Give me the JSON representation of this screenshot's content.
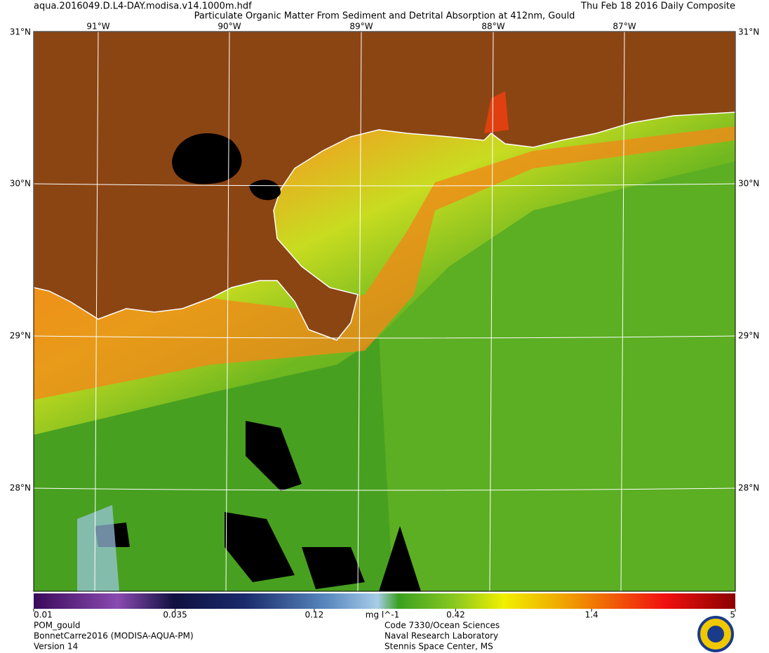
{
  "header": {
    "file": "aqua.2016049.D.L4-DAY.modisa.v14.1000m.hdf",
    "title": "Particulate Organic Matter From Sediment and Detrital Absorption at 412nm, Gould",
    "date": "Thu Feb 18 2016 Daily Composite"
  },
  "map": {
    "lon_labels": [
      "91°W",
      "90°W",
      "89°W",
      "88°W",
      "87°W"
    ],
    "lat_labels": [
      "31°N",
      "30°N",
      "29°N",
      "28°N"
    ]
  },
  "colorbar": {
    "range": [
      0.01,
      5
    ],
    "log": true,
    "ticks": [
      0.01,
      0.035,
      0.12,
      0.42,
      1.4,
      5
    ],
    "unit": "mg l^-1"
  },
  "footer": {
    "left": [
      "POM_gould",
      "BonnetCarre2016 (MODISA-AQUA-PM)",
      "Version 14"
    ],
    "right": [
      "Code 7330/Ocean Sciences",
      "Naval Research Laboratory",
      "Stennis Space Center, MS"
    ]
  }
}
